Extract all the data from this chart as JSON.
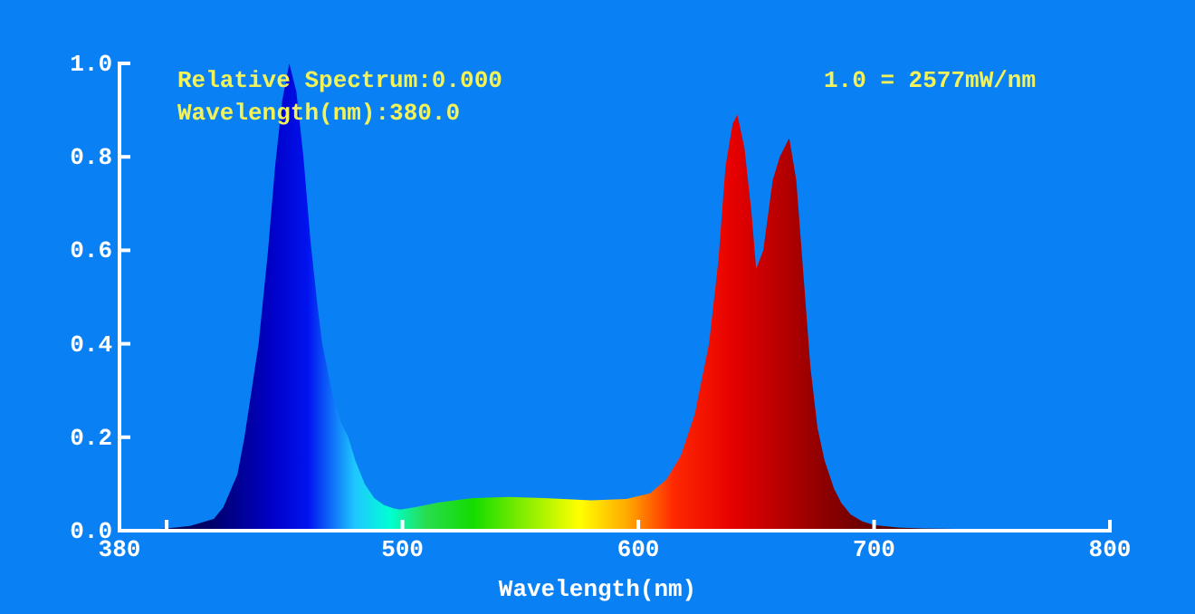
{
  "chart_data": {
    "type": "area",
    "xlabel": "Wavelength(nm)",
    "annotations": [
      "Relative Spectrum:0.000",
      "Wavelength(nm):380.0",
      "1.0 = 2577mW/nm"
    ],
    "x": [
      380,
      390,
      400,
      410,
      420,
      424,
      430,
      433,
      436,
      439,
      443,
      446,
      449,
      452,
      455,
      458,
      461,
      464,
      466,
      470,
      474,
      477,
      480,
      484,
      488,
      492,
      496,
      499,
      505,
      515,
      530,
      545,
      560,
      580,
      595,
      605,
      612,
      618,
      624,
      630,
      634,
      637,
      640,
      642,
      645,
      648,
      650,
      653,
      657,
      660,
      664,
      667,
      670,
      673,
      676,
      679,
      683,
      686,
      690,
      695,
      700,
      710,
      720,
      735,
      750,
      765,
      775,
      800
    ],
    "values": [
      0,
      0.002,
      0.005,
      0.01,
      0.025,
      0.05,
      0.12,
      0.2,
      0.3,
      0.4,
      0.6,
      0.78,
      0.92,
      1.0,
      0.94,
      0.8,
      0.62,
      0.48,
      0.4,
      0.3,
      0.23,
      0.2,
      0.15,
      0.1,
      0.07,
      0.055,
      0.048,
      0.045,
      0.05,
      0.06,
      0.07,
      0.072,
      0.07,
      0.065,
      0.068,
      0.08,
      0.11,
      0.16,
      0.25,
      0.4,
      0.58,
      0.78,
      0.87,
      0.89,
      0.82,
      0.68,
      0.56,
      0.6,
      0.75,
      0.8,
      0.84,
      0.75,
      0.55,
      0.35,
      0.22,
      0.15,
      0.09,
      0.06,
      0.035,
      0.02,
      0.012,
      0.007,
      0.005,
      0.004,
      0.003,
      0.002,
      0,
      0
    ],
    "xlim": [
      380,
      800
    ],
    "xticks": [
      380,
      {
        "value": 400,
        "label": null
      },
      500,
      600,
      700,
      800
    ],
    "ylim": [
      0,
      1
    ],
    "yticks": [
      {
        "value": 0,
        "label": "0.0"
      },
      {
        "value": 0.2,
        "label": "0.2"
      },
      {
        "value": 0.4,
        "label": "0.4"
      },
      {
        "value": 0.6,
        "label": "0.6"
      },
      {
        "value": 0.8,
        "label": "0.8"
      },
      {
        "value": 1,
        "label": "1.0"
      }
    ]
  }
}
